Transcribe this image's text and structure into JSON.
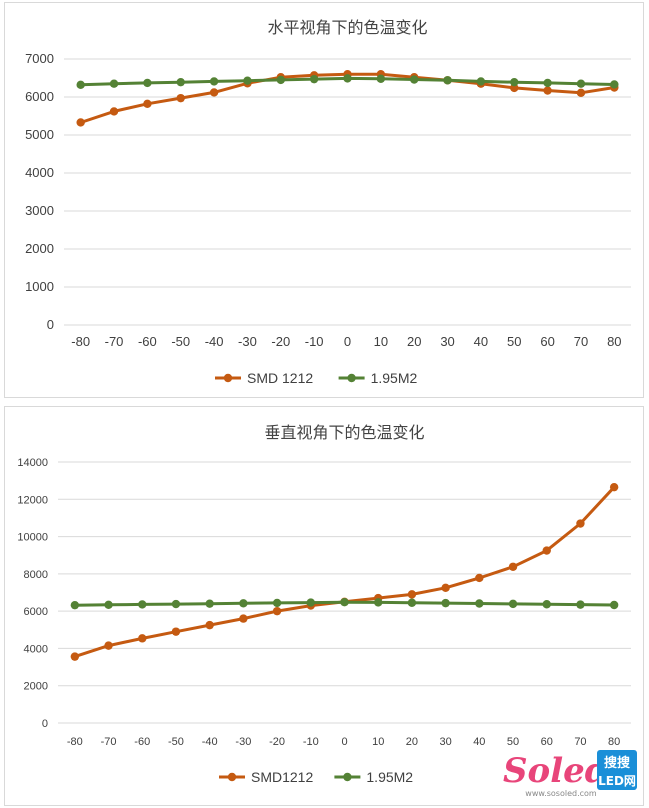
{
  "colors": {
    "smd": "#c55a11",
    "m2": "#548235",
    "grid": "#d9d9d9",
    "text": "#404040"
  },
  "chart_data": [
    {
      "type": "line",
      "title": "水平视角下的色温变化",
      "xlabel": "",
      "ylabel": "",
      "categories": [
        "-80",
        "-70",
        "-60",
        "-50",
        "-40",
        "-30",
        "-20",
        "-10",
        "0",
        "10",
        "20",
        "30",
        "40",
        "50",
        "60",
        "70",
        "80"
      ],
      "ylim": [
        0,
        7000
      ],
      "yticks": [
        "0",
        "1000",
        "2000",
        "3000",
        "4000",
        "5000",
        "6000",
        "7000"
      ],
      "legend_position": "bottom",
      "series": [
        {
          "name": "SMD 1212",
          "color": "#c55a11",
          "values": [
            5330,
            5620,
            5820,
            5970,
            6120,
            6360,
            6520,
            6570,
            6600,
            6600,
            6520,
            6440,
            6350,
            6240,
            6170,
            6110,
            6250
          ]
        },
        {
          "name": "1.95M2",
          "color": "#548235",
          "values": [
            6320,
            6350,
            6370,
            6390,
            6410,
            6430,
            6450,
            6470,
            6490,
            6480,
            6460,
            6440,
            6410,
            6390,
            6370,
            6350,
            6330
          ]
        }
      ]
    },
    {
      "type": "line",
      "title": "垂直视角下的色温变化",
      "xlabel": "",
      "ylabel": "",
      "categories": [
        "-80",
        "-70",
        "-60",
        "-50",
        "-40",
        "-30",
        "-20",
        "-10",
        "0",
        "10",
        "20",
        "30",
        "40",
        "50",
        "60",
        "70",
        "80"
      ],
      "ylim": [
        0,
        14000
      ],
      "yticks": [
        "0",
        "2000",
        "4000",
        "6000",
        "8000",
        "10000",
        "12000",
        "14000"
      ],
      "legend_position": "bottom",
      "series": [
        {
          "name": "SMD1212",
          "color": "#c55a11",
          "values": [
            3560,
            4150,
            4540,
            4900,
            5250,
            5600,
            6000,
            6300,
            6500,
            6700,
            6900,
            7250,
            7780,
            8380,
            9250,
            10700,
            12650
          ]
        },
        {
          "name": "1.95M2",
          "color": "#548235",
          "values": [
            6320,
            6340,
            6360,
            6380,
            6400,
            6420,
            6440,
            6460,
            6480,
            6470,
            6450,
            6430,
            6410,
            6390,
            6370,
            6350,
            6330
          ]
        }
      ]
    }
  ],
  "watermark": {
    "brand": "Soled",
    "badge_top": "搜搜",
    "badge_bottom": "LED网",
    "url": "www.sosoled.com"
  }
}
